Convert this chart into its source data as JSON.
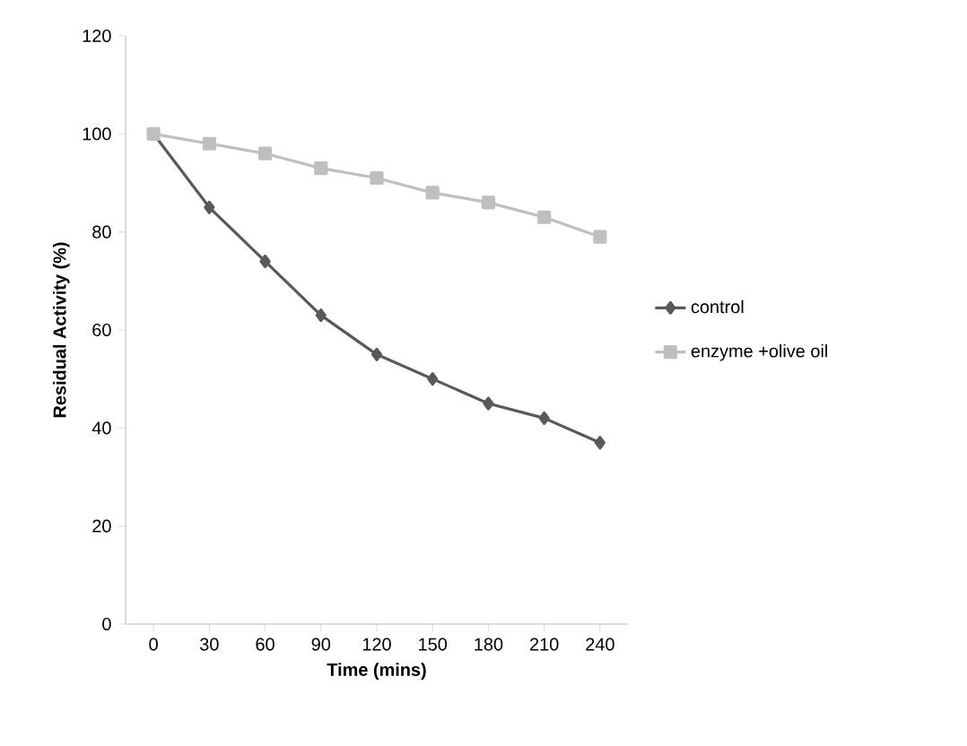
{
  "chart_data": {
    "type": "line",
    "xlabel": "Time (mins)",
    "ylabel": "Residual Activity (%)",
    "categories": [
      "0",
      "30",
      "60",
      "90",
      "120",
      "150",
      "180",
      "210",
      "240"
    ],
    "series": [
      {
        "name": "control",
        "color": "#595959",
        "marker": "diamond",
        "values": [
          100,
          85,
          74,
          63,
          55,
          50,
          45,
          42,
          37
        ]
      },
      {
        "name": "enzyme +olive oil",
        "color": "#bfbfbf",
        "marker": "square",
        "values": [
          100,
          98,
          96,
          93,
          91,
          88,
          86,
          83,
          79
        ]
      }
    ],
    "ylim": [
      0,
      120
    ],
    "yticks": [
      0,
      20,
      40,
      60,
      80,
      100,
      120
    ],
    "legend": "right",
    "grid": false,
    "line_style": "solid"
  }
}
